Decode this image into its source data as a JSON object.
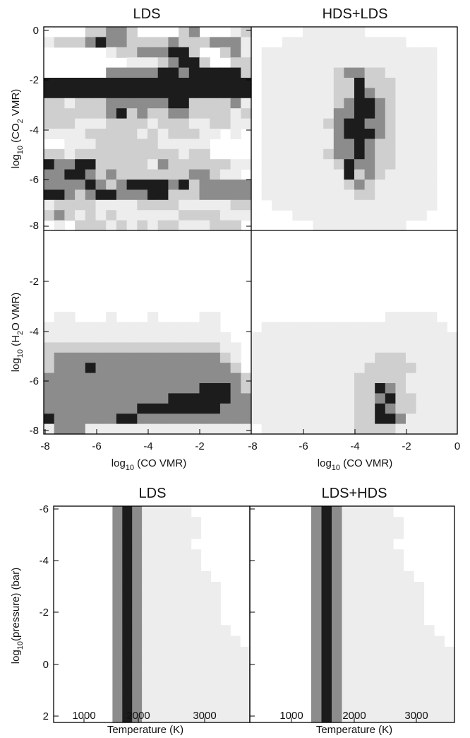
{
  "colors": {
    "levels": [
      "#ffffff",
      "#ededed",
      "#cfcfcf",
      "#8c8c8c",
      "#1c1c1c"
    ],
    "axis": "#000000"
  },
  "top_titles": [
    "LDS",
    "HDS+LDS"
  ],
  "bottom_titles": [
    "LDS",
    "LDS+HDS"
  ],
  "axis_labels": {
    "co2": [
      "log",
      "10",
      " (CO",
      "2",
      " VMR)"
    ],
    "h2o": [
      "log",
      "10",
      " (H",
      "2",
      "O VMR)"
    ],
    "co": [
      "log",
      "10",
      " (CO VMR)"
    ],
    "pressure": [
      "log",
      "10",
      "(pressure) (bar)"
    ],
    "temperature": "Temperature (K)"
  },
  "ticks": {
    "top_y": [
      "0",
      "-2",
      "-4",
      "-6",
      "-8"
    ],
    "mid_y": [
      "-2",
      "-4",
      "-6",
      "-8"
    ],
    "x_left": [
      "-8",
      "-6",
      "-4",
      "-2"
    ],
    "x_right": [
      "-8",
      "-6",
      "-4",
      "-2",
      "0"
    ],
    "pressure_y": [
      "-6",
      "-4",
      "-2",
      "0",
      "2"
    ],
    "temperature_x": [
      "1000",
      "2000",
      "3000"
    ]
  },
  "chart_data": [
    {
      "type": "heatmap",
      "title": "LDS",
      "xlabel": "",
      "ylabel": "log10 (CO2 VMR)",
      "xlim": [
        -8,
        -0.5
      ],
      "ylim": [
        -8.2,
        0
      ],
      "cells": 20,
      "levels": 5,
      "grid": [
        "00002233200002300012",
        "12223433222232223331",
        "00000012233344200231",
        "00000000111234420022",
        "00000033333443444442",
        "44444444444444444444",
        "44444444444444444444",
        "22122233333344222231",
        "22222234232233222212",
        "22211122221222112211",
        "11112222212122211010",
        "00111222222111110000",
        "22122222222221220000",
        "43344222221322222211",
        "33443232222222332110",
        "33334323444434233333",
        "44323443334422233333",
        "12222111122221111122",
        "23212121111112222111",
        "01022212121221112220"
      ]
    },
    {
      "type": "heatmap",
      "title": "HDS+LDS",
      "xlabel": "",
      "ylabel": "",
      "xlim": [
        -8,
        0
      ],
      "ylim": [
        -8.2,
        0
      ],
      "cells": 20,
      "levels": 5,
      "grid": [
        "00000111111000000000",
        "00011111111111100000",
        "01111111111111111100",
        "01111111111111111100",
        "01111111233221111100",
        "01111111224222111100",
        "01111111224322111100",
        "01111111234432111100",
        "01111111334432111100",
        "01111112344332111100",
        "01111111344432111100",
        "01111111334322111100",
        "01111112334322111100",
        "01111111243322111100",
        "01111111142321111100",
        "01111111123211111100",
        "01111111112211111100",
        "00111111111111111100",
        "00001111111111111000",
        "00000011111111100000"
      ]
    },
    {
      "type": "heatmap",
      "title": "",
      "xlabel": "log10 (CO VMR)",
      "ylabel": "log10 (H2O VMR)",
      "xlim": [
        -8,
        -0.5
      ],
      "ylim": [
        -8.2,
        0
      ],
      "cells": 20,
      "levels": 5,
      "grid": [
        "00000000000000000000",
        "00000000000000000000",
        "00000000000000000000",
        "00000000000000000000",
        "00000000000000000000",
        "00000000000000000000",
        "00000000000000000000",
        "00000000000000000000",
        "01100010001000011000",
        "11111111111111111000",
        "11111111111111111100",
        "22222222222222222110",
        "23333333333333333210",
        "23334333333333333320",
        "33333333333333333332",
        "33333333333333344432",
        "33333333333344444433",
        "33333333344444444333",
        "43333334433333333333",
        "13331111111111111111"
      ]
    },
    {
      "type": "heatmap",
      "title": "",
      "xlabel": "log10 (CO VMR)",
      "ylabel": "",
      "xlim": [
        -8,
        0
      ],
      "ylim": [
        -8.2,
        0
      ],
      "cells": 20,
      "levels": 5,
      "grid": [
        "00000000000000000000",
        "00000000000000000000",
        "00000000000000000000",
        "00000000000000000000",
        "00000000000000000000",
        "00000000000000000000",
        "00000000000000000000",
        "00000000000000000000",
        "00000000000001111100",
        "01111111111111111110",
        "11111111111111111111",
        "11111111111111111111",
        "11111111111122211111",
        "11111111111222221111",
        "11111111112222211111",
        "11111111112243211111",
        "11111111112234221111",
        "11111111112243221111",
        "11111111112244311111",
        "01111111112222111111"
      ]
    },
    {
      "type": "heatmap",
      "title": "LDS",
      "xlabel": "Temperature (K)",
      "ylabel": "log10(pressure) (bar)",
      "xlim": [
        500,
        3500
      ],
      "ylim": [
        -6.1,
        2.2
      ],
      "cells": 20,
      "levels": 5,
      "grid": [
        "00000034311111000000",
        "00000034311111100000",
        "00000034311111100000",
        "00000034311111000000",
        "00000034311111100000",
        "00000034311111100000",
        "00000034311111110000",
        "00000034311111111000",
        "00000034311111111000",
        "00000034311111111000",
        "00000034311111111000",
        "00000034311111111100",
        "00000034311111111110",
        "00000034311111111111",
        "00000034311111111111",
        "00000034311111111111",
        "00000034311111111111",
        "00000034311111111111",
        "00000034311111111111",
        "00000034311111111111"
      ]
    },
    {
      "type": "heatmap",
      "title": "LDS+HDS",
      "xlabel": "Temperature (K)",
      "ylabel": "",
      "xlim": [
        500,
        3500
      ],
      "ylim": [
        -6.1,
        2.2
      ],
      "cells": 20,
      "levels": 5,
      "grid": [
        "00000034311111000000",
        "00000034311111100000",
        "00000034311111100000",
        "00000034311111000000",
        "00000034311111100000",
        "00000034311111100000",
        "00000034311111110000",
        "00000034311111111000",
        "00000034311111111000",
        "00000034311111111000",
        "00000034311111111000",
        "00000034311111111100",
        "00000034311111111110",
        "00000034311111111111",
        "00000034311111111111",
        "00000034311111111111",
        "00000034311111111111",
        "00000034311111111111",
        "00000034311111111111",
        "00000034311111111111"
      ]
    }
  ]
}
